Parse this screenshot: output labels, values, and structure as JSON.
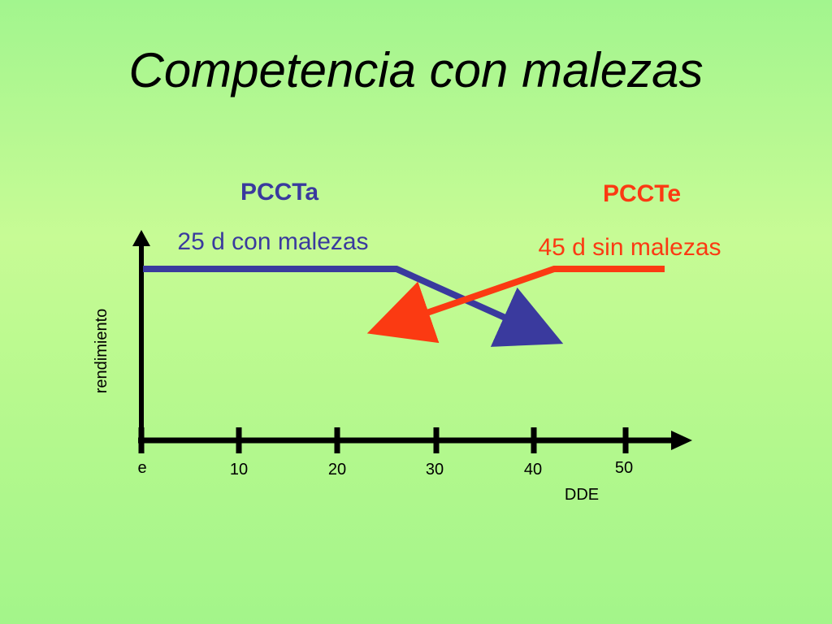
{
  "title": "Competencia con malezas",
  "colors": {
    "pccta": "#3a3a9e",
    "pccte": "#fb3a12",
    "axis": "#000000"
  },
  "labels": {
    "pccta_heading": "PCCTa",
    "pccta_desc": "25 d con malezas",
    "pccte_heading": "PCCTe",
    "pccte_desc": "45 d sin malezas",
    "y_axis": "rendimiento",
    "x_axis": "DDE"
  },
  "x_ticks": [
    "e",
    "10",
    "20",
    "30",
    "40",
    "50"
  ]
}
